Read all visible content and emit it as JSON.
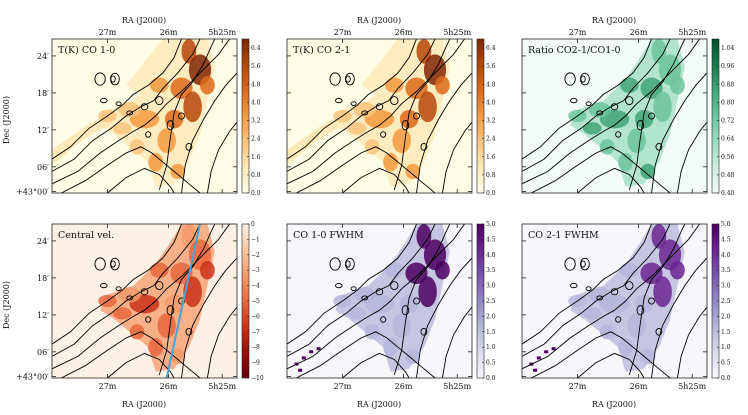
{
  "chart_data": [
    {
      "type": "heatmap",
      "panel": 0,
      "row": 0,
      "col": 0,
      "title": "T(K) CO 1-0",
      "colormap": "orange",
      "colorbar_ticks": [
        "0.0",
        "0.8",
        "1.6",
        "2.4",
        "3.2",
        "4.0",
        "4.8",
        "5.6",
        "6.4"
      ],
      "vmin": 0.0,
      "vmax": 6.8,
      "show_xlabel": false,
      "show_ylabel": true
    },
    {
      "type": "heatmap",
      "panel": 1,
      "row": 0,
      "col": 1,
      "title": "T(K) CO 2-1",
      "colormap": "orange",
      "colorbar_ticks": [
        "0.0",
        "0.8",
        "1.6",
        "2.4",
        "3.2",
        "4.0",
        "4.8",
        "5.6",
        "6.4"
      ],
      "vmin": 0.0,
      "vmax": 6.8,
      "show_xlabel": false,
      "show_ylabel": false
    },
    {
      "type": "heatmap",
      "panel": 2,
      "row": 0,
      "col": 2,
      "title": "Ratio CO2-1/CO1-0",
      "colormap": "green",
      "colorbar_ticks": [
        "0.40",
        "0.48",
        "0.56",
        "0.64",
        "0.72",
        "0.80",
        "0.88",
        "0.96",
        "1.04"
      ],
      "vmin": 0.4,
      "vmax": 1.08,
      "show_xlabel": false,
      "show_ylabel": false
    },
    {
      "type": "heatmap",
      "panel": 3,
      "row": 1,
      "col": 0,
      "title": "Central vel.",
      "colormap": "red",
      "colorbar_ticks": [
        "0",
        "−1",
        "−2",
        "−3",
        "−4",
        "−5",
        "−6",
        "−7",
        "−8",
        "−9",
        "−10"
      ],
      "vmin": -10,
      "vmax": 0,
      "show_xlabel": true,
      "show_ylabel": true
    },
    {
      "type": "heatmap",
      "panel": 4,
      "row": 1,
      "col": 1,
      "title": "CO 1-0 FWHM",
      "colormap": "purple",
      "colorbar_ticks": [
        "0.0",
        "0.5",
        "1.0",
        "1.5",
        "2.0",
        "2.5",
        "3.0",
        "3.5",
        "4.0",
        "4.5",
        "5.0"
      ],
      "vmin": 0.0,
      "vmax": 5.0,
      "show_xlabel": true,
      "show_ylabel": false
    },
    {
      "type": "heatmap",
      "panel": 5,
      "row": 1,
      "col": 2,
      "title": "CO 2-1 FWHM",
      "colormap": "purple",
      "colorbar_ticks": [
        "0.0",
        "0.5",
        "1.0",
        "1.5",
        "2.0",
        "2.5",
        "3.0",
        "3.5",
        "4.0",
        "4.5",
        "5.0"
      ],
      "vmin": 0.0,
      "vmax": 5.0,
      "show_xlabel": true,
      "show_ylabel": false
    }
  ],
  "axes": {
    "xlabel": "RA (J2000)",
    "ylabel": "Dec (J2000)",
    "x_ticks": [
      "27m",
      "26m",
      "5h25m"
    ],
    "y_ticks": [
      "24′",
      "18′",
      "12′",
      "06′",
      "+43°00′"
    ]
  },
  "colors": {
    "orange": [
      "#fffde6",
      "#fde9b8",
      "#fcc37c",
      "#f39a3e",
      "#dc6a1a",
      "#b54808",
      "#7f2704"
    ],
    "green": [
      "#f2fbf7",
      "#cdeee0",
      "#9ddcc2",
      "#6cc49f",
      "#3fa478",
      "#1b7a4e",
      "#00502e"
    ],
    "red": [
      "#fdf1e6",
      "#fcc9a2",
      "#f59a68",
      "#e8673d",
      "#c93318",
      "#9a0f0b",
      "#67000d"
    ],
    "purple": [
      "#f7f6fb",
      "#dbdcee",
      "#b5b6da",
      "#9088c2",
      "#7a55ad",
      "#6a2591",
      "#4b0060"
    ],
    "contour": "#000000",
    "line": "#4aa3d8"
  }
}
